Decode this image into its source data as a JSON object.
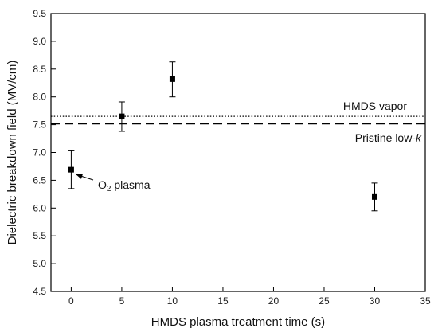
{
  "chart_data": {
    "type": "scatter",
    "xlabel": "HMDS plasma treatment time (s)",
    "ylabel": "Dielectric breakdown field (MV/cm)",
    "xlim": [
      -2,
      35
    ],
    "ylim": [
      4.5,
      9.5
    ],
    "x_ticks": [
      0,
      5,
      10,
      15,
      20,
      25,
      30,
      35
    ],
    "x_tick_labels": [
      "0",
      "5",
      "10",
      "15",
      "20",
      "25",
      "30",
      "35"
    ],
    "y_ticks": [
      4.5,
      5.0,
      5.5,
      6.0,
      6.5,
      7.0,
      7.5,
      8.0,
      8.5,
      9.0,
      9.5
    ],
    "y_tick_labels": [
      "4.5",
      "5.0",
      "5.5",
      "6.0",
      "6.5",
      "7.0",
      "7.5",
      "8.0",
      "8.5",
      "9.0",
      "9.5"
    ],
    "grid": false,
    "series": [
      {
        "points": [
          {
            "x": 0,
            "y": 6.69,
            "err_low": 6.35,
            "err_high": 7.03
          },
          {
            "x": 5,
            "y": 7.65,
            "err_low": 7.38,
            "err_high": 7.91
          },
          {
            "x": 10,
            "y": 8.32,
            "err_low": 8.0,
            "err_high": 8.63
          },
          {
            "x": 30,
            "y": 6.2,
            "err_low": 5.95,
            "err_high": 6.45
          }
        ],
        "marker": "square",
        "color": "#000000"
      }
    ],
    "reference_lines": [
      {
        "label": "HMDS vapor",
        "y": 7.65,
        "style": "dotted"
      },
      {
        "label_main": "Pristine low-",
        "label_italic": "k",
        "y": 7.52,
        "style": "dashed"
      }
    ],
    "annotations": [
      {
        "label_main": "O",
        "label_sub": "2",
        "label_rest": " plasma",
        "target_x": 0,
        "target_y": 6.69
      }
    ]
  }
}
